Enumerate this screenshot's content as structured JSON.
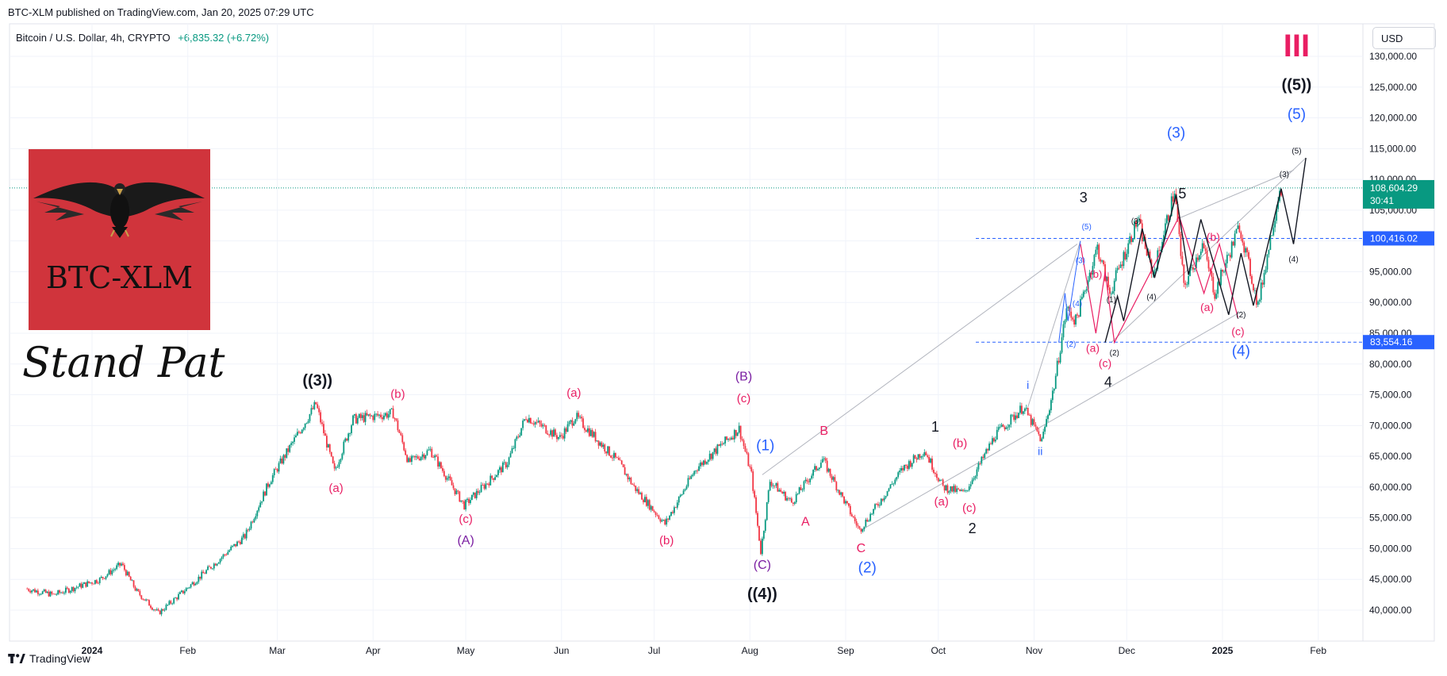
{
  "header": {
    "published": "BTC-XLM published on TradingView.com, Jan 20, 2025 07:29 UTC"
  },
  "symbol": {
    "name": "Bitcoin / U.S. Dollar, 4h, CRYPTO",
    "change": "+6,835.32 (+6.72%)"
  },
  "currency_button": "USD",
  "logo": {
    "text": "BTC-XLM",
    "tagline": "Stand Pat"
  },
  "footer": {
    "brand": "TradingView",
    "brand_icon": "tradingview-logo-icon"
  },
  "colors": {
    "up": "#089981",
    "down": "#f23645",
    "wave_red": "#e91e63",
    "wave_blue": "#2962ff",
    "wave_purple": "#7b1fa2",
    "price_badge": "#089981",
    "level_badge": "#2962ff"
  },
  "chart_data": {
    "type": "candlestick",
    "x_ticks": [
      "2024",
      "Feb",
      "Mar",
      "Apr",
      "May",
      "Jun",
      "Jul",
      "Aug",
      "Sep",
      "Oct",
      "Nov",
      "Dec",
      "2025",
      "Feb"
    ],
    "y_ticks": [
      "130,000.00",
      "125,000.00",
      "120,000.00",
      "115,000.00",
      "110,000.00",
      "105,000.00",
      "100,000.00",
      "95,000.00",
      "90,000.00",
      "85,000.00",
      "80,000.00",
      "75,000.00",
      "70,000.00",
      "65,000.00",
      "60,000.00",
      "55,000.00",
      "50,000.00",
      "45,000.00",
      "40,000.00"
    ],
    "ylim": [
      38000,
      132000
    ],
    "price_path": [
      [
        "2023-12-11",
        43500
      ],
      [
        "2023-12-20",
        42500
      ],
      [
        "2024-01-04",
        45000
      ],
      [
        "2024-01-11",
        47500
      ],
      [
        "2024-01-16",
        43000
      ],
      [
        "2024-01-23",
        39500
      ],
      [
        "2024-01-31",
        43000
      ],
      [
        "2024-02-10",
        47500
      ],
      [
        "2024-02-20",
        52000
      ],
      [
        "2024-02-28",
        61000
      ],
      [
        "2024-03-05",
        66000
      ],
      [
        "2024-03-14",
        73500
      ],
      [
        "2024-03-20",
        62500
      ],
      [
        "2024-03-26",
        71000
      ],
      [
        "2024-04-08",
        72000
      ],
      [
        "2024-04-13",
        64000
      ],
      [
        "2024-04-20",
        66000
      ],
      [
        "2024-05-01",
        57000
      ],
      [
        "2024-05-15",
        64000
      ],
      [
        "2024-05-21",
        71500
      ],
      [
        "2024-06-01",
        68000
      ],
      [
        "2024-06-06",
        71500
      ],
      [
        "2024-06-20",
        64000
      ],
      [
        "2024-06-25",
        60000
      ],
      [
        "2024-07-05",
        54000
      ],
      [
        "2024-07-15",
        63000
      ],
      [
        "2024-07-29",
        69500
      ],
      [
        "2024-08-02",
        62000
      ],
      [
        "2024-08-05",
        49500
      ],
      [
        "2024-08-08",
        61000
      ],
      [
        "2024-08-15",
        57500
      ],
      [
        "2024-08-25",
        64500
      ],
      [
        "2024-09-06",
        53000
      ],
      [
        "2024-09-20",
        63000
      ],
      [
        "2024-09-27",
        66000
      ],
      [
        "2024-10-03",
        60000
      ],
      [
        "2024-10-10",
        59000
      ],
      [
        "2024-10-20",
        68500
      ],
      [
        "2024-10-29",
        73000
      ],
      [
        "2024-11-04",
        67500
      ],
      [
        "2024-11-08",
        76500
      ],
      [
        "2024-11-12",
        89000
      ],
      [
        "2024-11-15",
        87000
      ],
      [
        "2024-11-22",
        99000
      ],
      [
        "2024-11-26",
        91500
      ],
      [
        "2024-12-05",
        103500
      ],
      [
        "2024-12-10",
        94500
      ],
      [
        "2024-12-17",
        108200
      ],
      [
        "2024-12-20",
        92500
      ],
      [
        "2024-12-26",
        99500
      ],
      [
        "2024-12-30",
        91500
      ],
      [
        "2025-01-07",
        102500
      ],
      [
        "2025-01-13",
        89500
      ],
      [
        "2025-01-20",
        108604
      ]
    ],
    "current_price": "108,604.29",
    "countdown": "30:41",
    "levels": [
      {
        "value": 100416.02,
        "label": "100,416.02"
      },
      {
        "value": 83554.16,
        "label": "83,554.16"
      }
    ],
    "wave_labels": [
      {
        "text": "((3))",
        "date": "2024-03-14",
        "price": 76500,
        "color": "#131722",
        "size": 20
      },
      {
        "text": "(a)",
        "date": "2024-03-20",
        "price": 59200,
        "color": "#e91e63",
        "size": 15
      },
      {
        "text": "(b)",
        "date": "2024-04-09",
        "price": 74500,
        "color": "#e91e63",
        "size": 15
      },
      {
        "text": "(c)",
        "date": "2024-05-01",
        "price": 54200,
        "color": "#e91e63",
        "size": 15
      },
      {
        "text": "(A)",
        "date": "2024-05-01",
        "price": 50700,
        "color": "#7b1fa2",
        "size": 16
      },
      {
        "text": "(a)",
        "date": "2024-06-05",
        "price": 74700,
        "color": "#e91e63",
        "size": 15
      },
      {
        "text": "(b)",
        "date": "2024-07-05",
        "price": 50700,
        "color": "#e91e63",
        "size": 15
      },
      {
        "text": "(B)",
        "date": "2024-07-30",
        "price": 77300,
        "color": "#7b1fa2",
        "size": 16
      },
      {
        "text": "(c)",
        "date": "2024-07-30",
        "price": 73800,
        "color": "#e91e63",
        "size": 15
      },
      {
        "text": "(C)",
        "date": "2024-08-05",
        "price": 46700,
        "color": "#7b1fa2",
        "size": 16
      },
      {
        "text": "((4))",
        "date": "2024-08-05",
        "price": 41800,
        "color": "#131722",
        "size": 20
      },
      {
        "text": "(1)",
        "date": "2024-08-06",
        "price": 66000,
        "color": "#2962ff",
        "size": 19
      },
      {
        "text": "B",
        "date": "2024-08-25",
        "price": 68500,
        "color": "#e91e63",
        "size": 16
      },
      {
        "text": "A",
        "date": "2024-08-19",
        "price": 53700,
        "color": "#e91e63",
        "size": 16
      },
      {
        "text": "C",
        "date": "2024-09-06",
        "price": 49400,
        "color": "#e91e63",
        "size": 16
      },
      {
        "text": "(2)",
        "date": "2024-09-08",
        "price": 46100,
        "color": "#2962ff",
        "size": 19
      },
      {
        "text": "1",
        "date": "2024-09-30",
        "price": 69000,
        "color": "#131722",
        "size": 18
      },
      {
        "text": "(b)",
        "date": "2024-10-08",
        "price": 66500,
        "color": "#e91e63",
        "size": 15
      },
      {
        "text": "(a)",
        "date": "2024-10-02",
        "price": 57000,
        "color": "#e91e63",
        "size": 15
      },
      {
        "text": "(c)",
        "date": "2024-10-11",
        "price": 56000,
        "color": "#e91e63",
        "size": 15
      },
      {
        "text": "2",
        "date": "2024-10-12",
        "price": 52500,
        "color": "#131722",
        "size": 18
      },
      {
        "text": "i",
        "date": "2024-10-30",
        "price": 76000,
        "color": "#2962ff",
        "size": 14
      },
      {
        "text": "ii",
        "date": "2024-11-03",
        "price": 65200,
        "color": "#2962ff",
        "size": 14
      },
      {
        "text": "(2)",
        "date": "2024-11-13",
        "price": 82800,
        "color": "#2962ff",
        "size": 10
      },
      {
        "text": "(4)",
        "date": "2024-11-15",
        "price": 89400,
        "color": "#2962ff",
        "size": 10
      },
      {
        "text": "(3)",
        "date": "2024-11-16",
        "price": 96400,
        "color": "#2962ff",
        "size": 10
      },
      {
        "text": "(5)",
        "date": "2024-11-18",
        "price": 101900,
        "color": "#2962ff",
        "size": 10
      },
      {
        "text": "3",
        "date": "2024-11-17",
        "price": 106300,
        "color": "#131722",
        "size": 18
      },
      {
        "text": "(b)",
        "date": "2024-11-21",
        "price": 94000,
        "color": "#e91e63",
        "size": 13
      },
      {
        "text": "(a)",
        "date": "2024-11-20",
        "price": 82000,
        "color": "#e91e63",
        "size": 14
      },
      {
        "text": "(c)",
        "date": "2024-11-24",
        "price": 79500,
        "color": "#e91e63",
        "size": 14
      },
      {
        "text": "4",
        "date": "2024-11-25",
        "price": 76300,
        "color": "#131722",
        "size": 18
      },
      {
        "text": "(1)",
        "date": "2024-11-26",
        "price": 90000,
        "color": "#131722",
        "size": 10
      },
      {
        "text": "(2)",
        "date": "2024-11-27",
        "price": 81400,
        "color": "#131722",
        "size": 10
      },
      {
        "text": "(3)",
        "date": "2024-12-04",
        "price": 102800,
        "color": "#131722",
        "size": 10
      },
      {
        "text": "(4)",
        "date": "2024-12-09",
        "price": 90500,
        "color": "#131722",
        "size": 10
      },
      {
        "text": "(3)",
        "date": "2024-12-17",
        "price": 116800,
        "color": "#2962ff",
        "size": 19
      },
      {
        "text": "5",
        "date": "2024-12-19",
        "price": 106900,
        "color": "#131722",
        "size": 18
      },
      {
        "text": "(b)",
        "date": "2024-12-29",
        "price": 100000,
        "color": "#e91e63",
        "size": 14
      },
      {
        "text": "(a)",
        "date": "2024-12-27",
        "price": 88600,
        "color": "#e91e63",
        "size": 14
      },
      {
        "text": "(c)",
        "date": "2025-01-06",
        "price": 84700,
        "color": "#e91e63",
        "size": 14
      },
      {
        "text": "(2)",
        "date": "2025-01-07",
        "price": 87600,
        "color": "#131722",
        "size": 10
      },
      {
        "text": "(4)",
        "date": "2025-01-07",
        "price": 81300,
        "color": "#2962ff",
        "size": 19
      },
      {
        "text": "(3)",
        "date": "2025-01-21",
        "price": 110400,
        "color": "#131722",
        "size": 10
      },
      {
        "text": "(4)",
        "date": "2025-01-24",
        "price": 96600,
        "color": "#131722",
        "size": 10
      },
      {
        "text": "(5)",
        "date": "2025-01-25",
        "price": 114200,
        "color": "#131722",
        "size": 10
      },
      {
        "text": "(5)",
        "date": "2025-01-25",
        "price": 119800,
        "color": "#2962ff",
        "size": 19
      },
      {
        "text": "((5))",
        "date": "2025-01-25",
        "price": 124500,
        "color": "#131722",
        "size": 20
      },
      {
        "text": "III",
        "date": "2025-01-25",
        "price": 130000,
        "color": "#e91e63",
        "size": 40
      }
    ],
    "black_projection": [
      [
        "2024-11-24",
        83500
      ],
      [
        "2024-11-28",
        91000
      ],
      [
        "2024-11-30",
        87000
      ],
      [
        "2024-12-06",
        102000
      ],
      [
        "2024-12-10",
        94000
      ],
      [
        "2024-12-17",
        107500
      ],
      [
        "2024-12-21",
        94500
      ],
      [
        "2024-12-25",
        103500
      ],
      [
        "2025-01-03",
        88000
      ],
      [
        "2025-01-07",
        98000
      ],
      [
        "2025-01-11",
        89500
      ],
      [
        "2025-01-20",
        108500
      ],
      [
        "2025-01-24",
        99500
      ],
      [
        "2025-01-28",
        113500
      ]
    ],
    "red_projection": [
      [
        "2024-11-16",
        99500
      ],
      [
        "2024-11-21",
        85000
      ],
      [
        "2024-11-24",
        95000
      ],
      [
        "2024-11-27",
        83500
      ],
      [
        "2024-12-18",
        104000
      ],
      [
        "2024-12-26",
        91500
      ],
      [
        "2024-12-31",
        99500
      ],
      [
        "2025-01-06",
        87500
      ]
    ],
    "blue_projection": [
      [
        "2024-11-09",
        83500
      ],
      [
        "2024-11-11",
        91500
      ],
      [
        "2024-11-12",
        87000
      ],
      [
        "2024-11-16",
        100000
      ]
    ],
    "channel_lines": [
      [
        [
          "2024-08-05",
          62000
        ],
        [
          "2024-11-15",
          99500
        ]
      ],
      [
        [
          "2024-09-06",
          53000
        ],
        [
          "2025-01-07",
          88500
        ]
      ],
      [
        [
          "2024-10-30",
          73000
        ],
        [
          "2024-11-16",
          100000
        ]
      ],
      [
        [
          "2024-11-26",
          83500
        ],
        [
          "2025-01-28",
          113500
        ]
      ],
      [
        [
          "2024-12-17",
          103500
        ],
        [
          "2025-01-24",
          111500
        ]
      ]
    ]
  }
}
